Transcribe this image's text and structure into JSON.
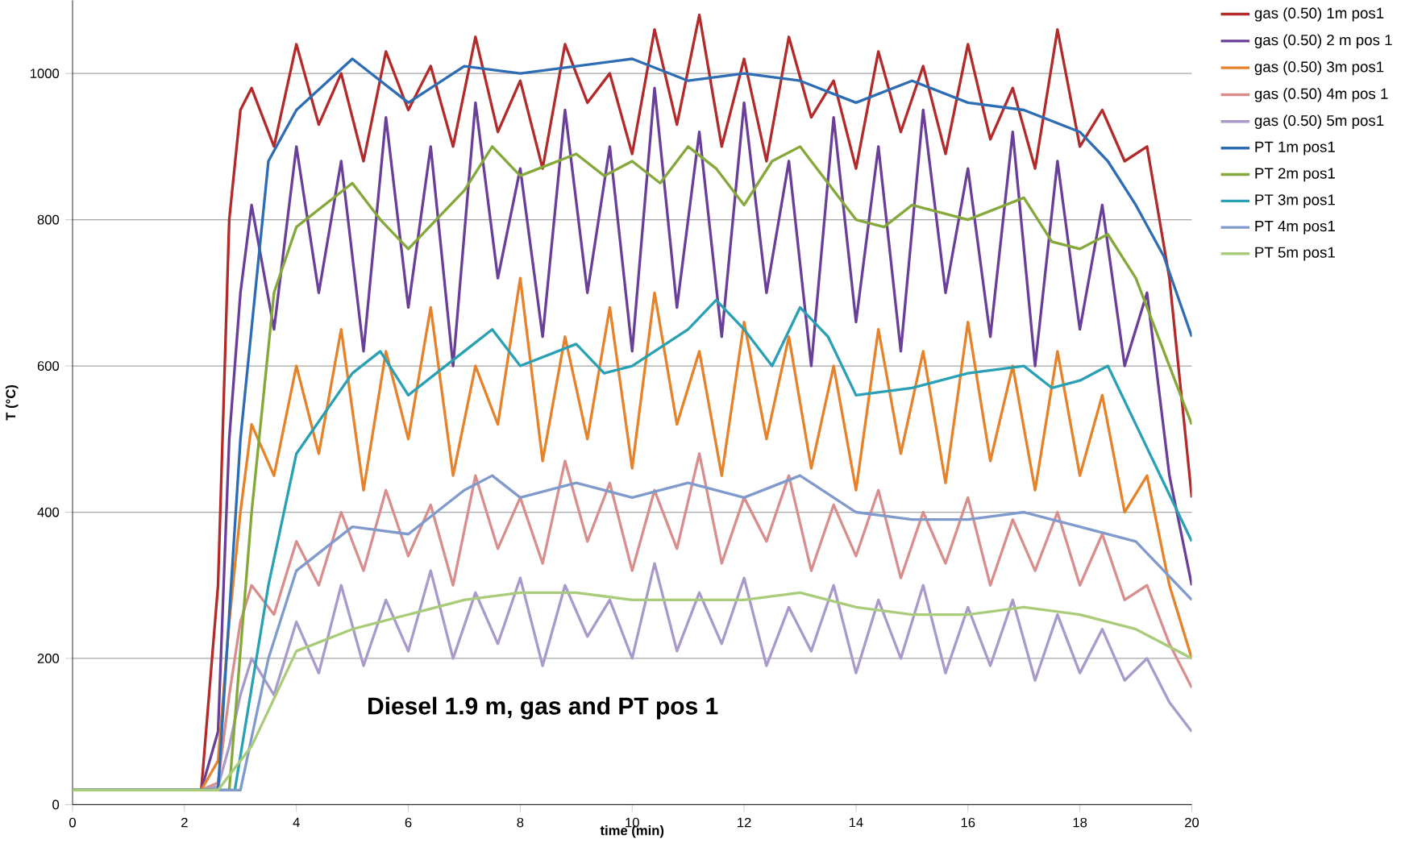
{
  "chart_data": {
    "type": "line",
    "xlabel": "time (min)",
    "ylabel": "T (°C)",
    "annotations": [
      "Diesel 1.9 m, gas and PT pos 1"
    ],
    "xlim": [
      0,
      20
    ],
    "ylim": [
      0,
      1100
    ],
    "xticks": [
      0,
      2,
      4,
      6,
      8,
      10,
      12,
      14,
      16,
      18,
      20
    ],
    "yticks": [
      0,
      200,
      400,
      600,
      800,
      1000
    ],
    "grid": "y",
    "legend": "right",
    "series": [
      {
        "name": "gas (0.50) 1m pos1",
        "color": "#b22a2a",
        "x": [
          0,
          2.3,
          2.6,
          2.8,
          3.0,
          3.2,
          3.6,
          4.0,
          4.4,
          4.8,
          5.2,
          5.6,
          6.0,
          6.4,
          6.8,
          7.2,
          7.6,
          8.0,
          8.4,
          8.8,
          9.2,
          9.6,
          10.0,
          10.4,
          10.8,
          11.2,
          11.6,
          12.0,
          12.4,
          12.8,
          13.2,
          13.6,
          14.0,
          14.4,
          14.8,
          15.2,
          15.6,
          16.0,
          16.4,
          16.8,
          17.2,
          17.6,
          18.0,
          18.4,
          18.8,
          19.2,
          19.6,
          20
        ],
        "values": [
          20,
          20,
          300,
          800,
          950,
          980,
          900,
          1040,
          930,
          1000,
          880,
          1030,
          950,
          1010,
          900,
          1050,
          920,
          990,
          870,
          1040,
          960,
          1000,
          890,
          1060,
          930,
          1080,
          900,
          1020,
          880,
          1050,
          940,
          990,
          870,
          1030,
          920,
          1010,
          890,
          1040,
          910,
          980,
          870,
          1060,
          900,
          950,
          880,
          900,
          720,
          420
        ]
      },
      {
        "name": "gas (0.50) 2 m pos 1",
        "color": "#6a3f99",
        "x": [
          0,
          2.3,
          2.6,
          2.8,
          3.0,
          3.2,
          3.6,
          4.0,
          4.4,
          4.8,
          5.2,
          5.6,
          6.0,
          6.4,
          6.8,
          7.2,
          7.6,
          8.0,
          8.4,
          8.8,
          9.2,
          9.6,
          10.0,
          10.4,
          10.8,
          11.2,
          11.6,
          12.0,
          12.4,
          12.8,
          13.2,
          13.6,
          14.0,
          14.4,
          14.8,
          15.2,
          15.6,
          16.0,
          16.4,
          16.8,
          17.2,
          17.6,
          18.0,
          18.4,
          18.8,
          19.2,
          19.6,
          20
        ],
        "values": [
          20,
          20,
          100,
          500,
          700,
          820,
          650,
          900,
          700,
          880,
          620,
          940,
          680,
          900,
          600,
          960,
          720,
          870,
          640,
          950,
          700,
          900,
          620,
          980,
          680,
          920,
          640,
          960,
          700,
          880,
          600,
          940,
          660,
          900,
          620,
          950,
          700,
          870,
          640,
          920,
          600,
          880,
          650,
          820,
          600,
          700,
          450,
          300
        ]
      },
      {
        "name": "gas (0.50) 3m pos1",
        "color": "#e6822a",
        "x": [
          0,
          2.3,
          2.6,
          2.8,
          3.0,
          3.2,
          3.6,
          4.0,
          4.4,
          4.8,
          5.2,
          5.6,
          6.0,
          6.4,
          6.8,
          7.2,
          7.6,
          8.0,
          8.4,
          8.8,
          9.2,
          9.6,
          10.0,
          10.4,
          10.8,
          11.2,
          11.6,
          12.0,
          12.4,
          12.8,
          13.2,
          13.6,
          14.0,
          14.4,
          14.8,
          15.2,
          15.6,
          16.0,
          16.4,
          16.8,
          17.2,
          17.6,
          18.0,
          18.4,
          18.8,
          19.2,
          19.6,
          20
        ],
        "values": [
          20,
          20,
          60,
          250,
          400,
          520,
          450,
          600,
          480,
          650,
          430,
          620,
          500,
          680,
          450,
          600,
          520,
          720,
          470,
          640,
          500,
          680,
          460,
          700,
          520,
          620,
          450,
          660,
          500,
          640,
          460,
          600,
          430,
          650,
          480,
          620,
          440,
          660,
          470,
          600,
          430,
          620,
          450,
          560,
          400,
          450,
          300,
          200
        ]
      },
      {
        "name": "gas (0.50) 4m pos 1",
        "color": "#d98e8e",
        "x": [
          2.3,
          2.6,
          2.8,
          3.0,
          3.2,
          3.6,
          4.0,
          4.4,
          4.8,
          5.2,
          5.6,
          6.0,
          6.4,
          6.8,
          7.2,
          7.6,
          8.0,
          8.4,
          8.8,
          9.2,
          9.6,
          10.0,
          10.4,
          10.8,
          11.2,
          11.6,
          12.0,
          12.4,
          12.8,
          13.2,
          13.6,
          14.0,
          14.4,
          14.8,
          15.2,
          15.6,
          16.0,
          16.4,
          16.8,
          17.2,
          17.6,
          18.0,
          18.4,
          18.8,
          19.2,
          19.6,
          20
        ],
        "values": [
          20,
          30,
          150,
          250,
          300,
          260,
          360,
          300,
          400,
          320,
          430,
          340,
          410,
          300,
          450,
          350,
          420,
          330,
          470,
          360,
          440,
          320,
          430,
          350,
          480,
          330,
          420,
          360,
          450,
          320,
          410,
          340,
          430,
          310,
          400,
          330,
          420,
          300,
          390,
          320,
          400,
          300,
          370,
          280,
          300,
          220,
          160
        ]
      },
      {
        "name": "gas (0.50) 5m pos1",
        "color": "#a89acb",
        "x": [
          2.3,
          2.6,
          2.8,
          3.0,
          3.2,
          3.6,
          4.0,
          4.4,
          4.8,
          5.2,
          5.6,
          6.0,
          6.4,
          6.8,
          7.2,
          7.6,
          8.0,
          8.4,
          8.8,
          9.2,
          9.6,
          10.0,
          10.4,
          10.8,
          11.2,
          11.6,
          12.0,
          12.4,
          12.8,
          13.2,
          13.6,
          14.0,
          14.4,
          14.8,
          15.2,
          15.6,
          16.0,
          16.4,
          16.8,
          17.2,
          17.6,
          18.0,
          18.4,
          18.8,
          19.2,
          19.6,
          20
        ],
        "values": [
          20,
          25,
          80,
          150,
          200,
          150,
          250,
          180,
          300,
          190,
          280,
          210,
          320,
          200,
          290,
          220,
          310,
          190,
          300,
          230,
          280,
          200,
          330,
          210,
          290,
          220,
          310,
          190,
          270,
          210,
          300,
          180,
          280,
          200,
          300,
          180,
          270,
          190,
          280,
          170,
          260,
          180,
          240,
          170,
          200,
          140,
          100
        ]
      },
      {
        "name": "PT 1m pos1",
        "color": "#2e6db3",
        "x": [
          0,
          2.6,
          3,
          3.5,
          4,
          5,
          6,
          7,
          8,
          9,
          10,
          11,
          12,
          13,
          14,
          15,
          16,
          17,
          18,
          18.5,
          19,
          19.5,
          20
        ],
        "values": [
          20,
          20,
          500,
          880,
          950,
          1020,
          960,
          1010,
          1000,
          1010,
          1020,
          990,
          1000,
          990,
          960,
          990,
          960,
          950,
          920,
          880,
          820,
          750,
          640
        ]
      },
      {
        "name": "PT 2m pos1",
        "color": "#85a83a",
        "x": [
          0,
          2.8,
          3.2,
          3.6,
          4,
          5,
          5.5,
          6,
          7,
          7.5,
          8,
          9,
          9.5,
          10,
          10.5,
          11,
          11.5,
          12,
          12.5,
          13,
          14,
          14.5,
          15,
          16,
          17,
          17.5,
          18,
          18.5,
          19,
          19.5,
          20
        ],
        "values": [
          20,
          20,
          400,
          700,
          790,
          850,
          800,
          760,
          840,
          900,
          860,
          890,
          860,
          880,
          850,
          900,
          870,
          820,
          880,
          900,
          800,
          790,
          820,
          800,
          830,
          770,
          760,
          780,
          720,
          620,
          520
        ]
      },
      {
        "name": "PT 3m pos1",
        "color": "#2aa0b5",
        "x": [
          0,
          2.9,
          3.5,
          4,
          5,
          5.5,
          6,
          7,
          7.5,
          8,
          9,
          9.5,
          10,
          11,
          11.5,
          12,
          12.5,
          13,
          13.5,
          14,
          15,
          16,
          17,
          17.5,
          18,
          18.5,
          19,
          19.5,
          20
        ],
        "values": [
          20,
          20,
          300,
          480,
          590,
          620,
          560,
          620,
          650,
          600,
          630,
          590,
          600,
          650,
          690,
          650,
          600,
          680,
          640,
          560,
          570,
          590,
          600,
          570,
          580,
          600,
          520,
          440,
          360
        ]
      },
      {
        "name": "PT 4m pos1",
        "color": "#7f9acb",
        "x": [
          0,
          3,
          3.5,
          4,
          5,
          6,
          7,
          7.5,
          8,
          9,
          10,
          11,
          12,
          13,
          14,
          15,
          16,
          17,
          18,
          19,
          20
        ],
        "values": [
          20,
          20,
          200,
          320,
          380,
          370,
          430,
          450,
          420,
          440,
          420,
          440,
          420,
          450,
          400,
          390,
          390,
          400,
          380,
          360,
          280
        ]
      },
      {
        "name": "PT 5m pos1",
        "color": "#a9cc7a",
        "x": [
          0,
          2.6,
          3.2,
          4,
          5,
          6,
          7,
          8,
          9,
          10,
          11,
          12,
          13,
          14,
          15,
          16,
          17,
          18,
          19,
          20
        ],
        "values": [
          20,
          20,
          80,
          210,
          240,
          260,
          280,
          290,
          290,
          280,
          280,
          280,
          290,
          270,
          260,
          260,
          270,
          260,
          240,
          200
        ]
      }
    ]
  }
}
